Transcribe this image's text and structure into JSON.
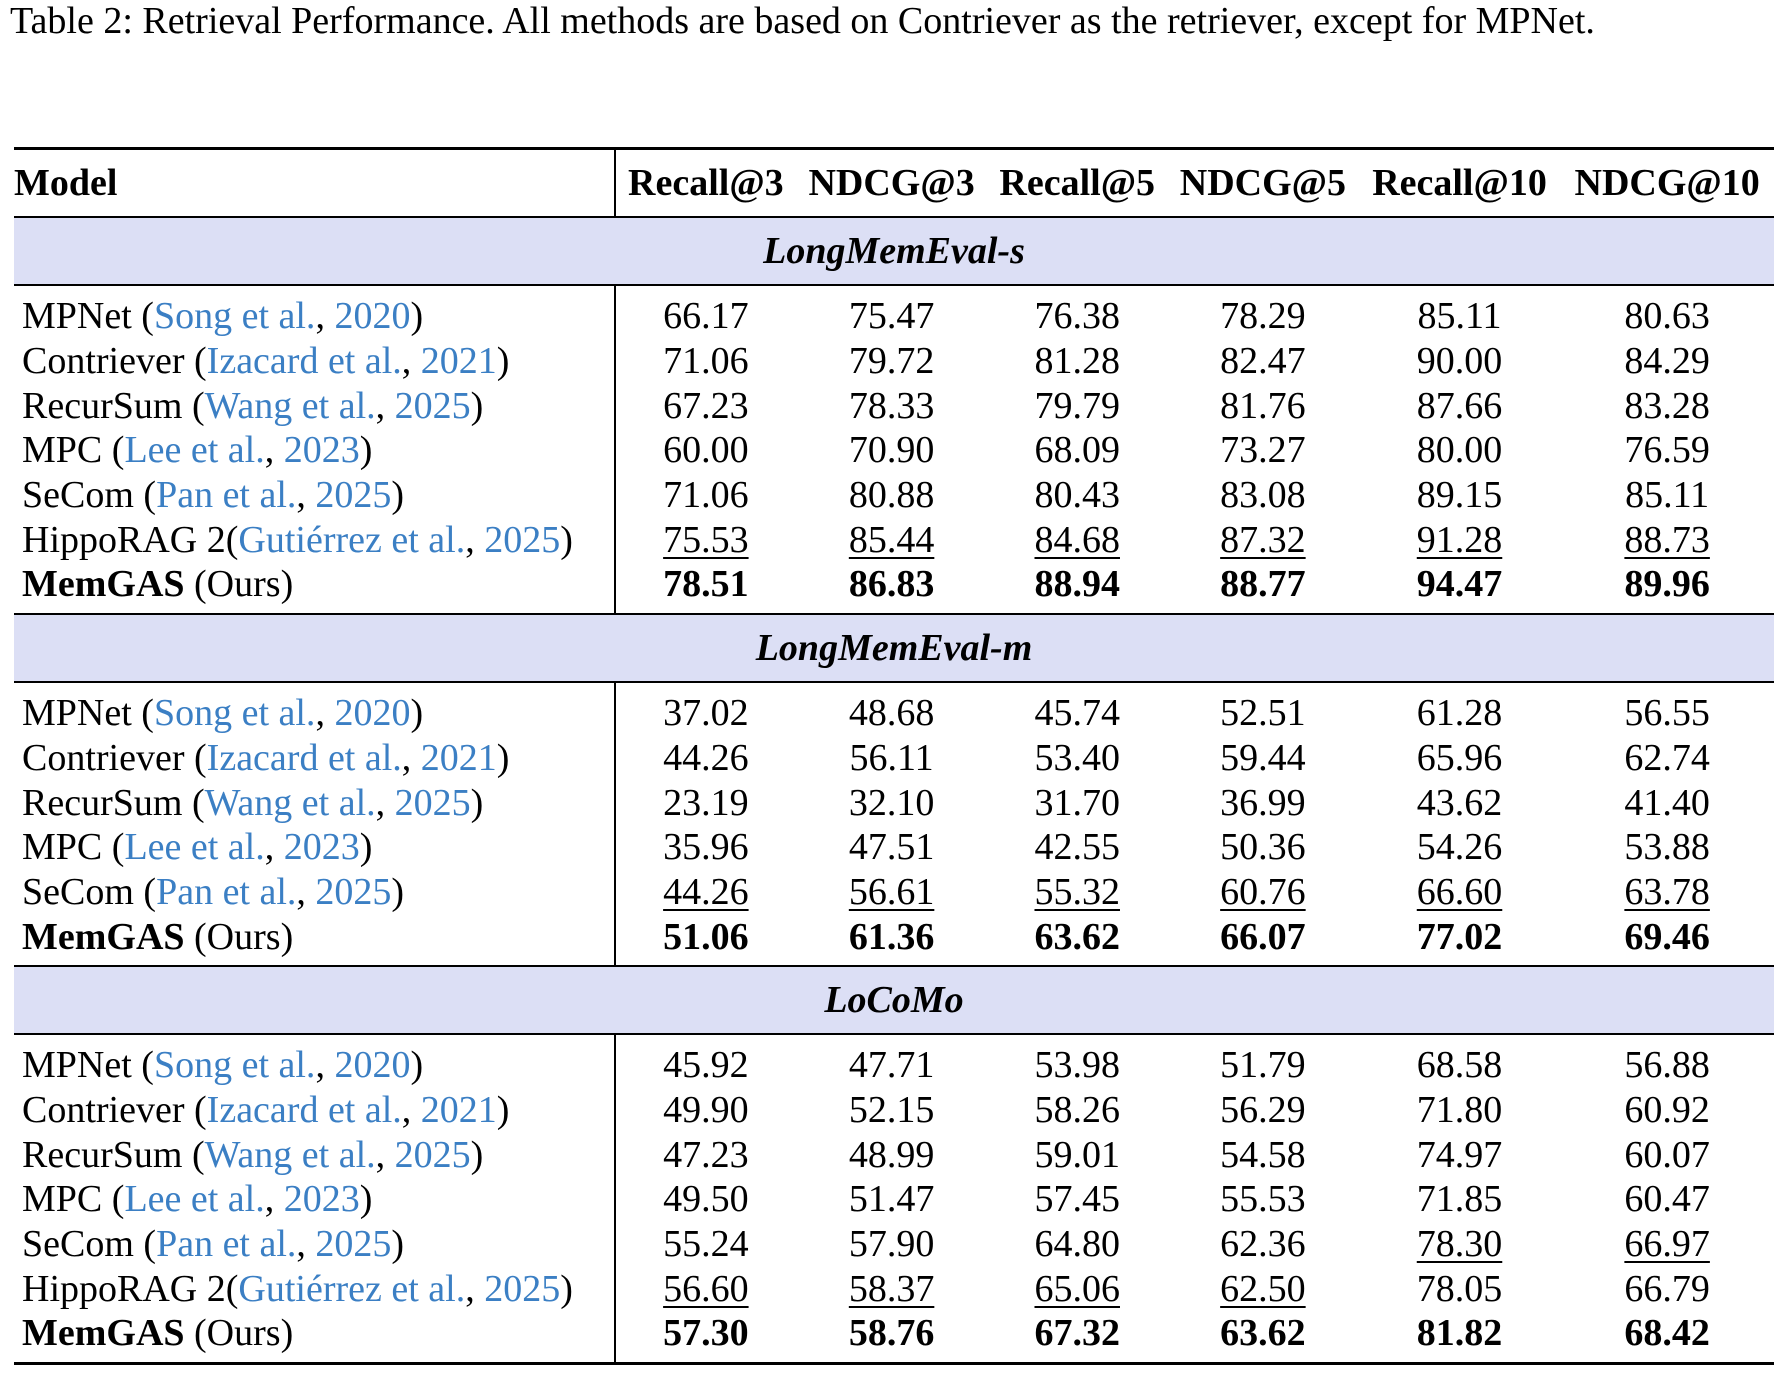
{
  "caption": "Table 2: Retrieval Performance. All methods are based on Contriever as the retriever, except for MPNet.",
  "columns": [
    "Model",
    "Recall@3",
    "NDCG@3",
    "Recall@5",
    "NDCG@5",
    "Recall@10",
    "NDCG@10"
  ],
  "sections": [
    {
      "title": "LongMemEval-s",
      "rows": [
        {
          "name": "MPNet",
          "cite_pre": " (",
          "cite_text": "Song et al.",
          "cite_sep": ", ",
          "cite_year": "2020",
          "cite_post": ")",
          "values": [
            "66.17",
            "75.47",
            "76.38",
            "78.29",
            "85.11",
            "80.63"
          ],
          "style": [
            "",
            "",
            "",
            "",
            "",
            ""
          ]
        },
        {
          "name": "Contriever",
          "cite_pre": " (",
          "cite_text": "Izacard et al.",
          "cite_sep": ", ",
          "cite_year": "2021",
          "cite_post": ")",
          "values": [
            "71.06",
            "79.72",
            "81.28",
            "82.47",
            "90.00",
            "84.29"
          ],
          "style": [
            "",
            "",
            "",
            "",
            "",
            ""
          ]
        },
        {
          "name": "RecurSum",
          "cite_pre": " (",
          "cite_text": "Wang et al.",
          "cite_sep": ", ",
          "cite_year": "2025",
          "cite_post": ")",
          "values": [
            "67.23",
            "78.33",
            "79.79",
            "81.76",
            "87.66",
            "83.28"
          ],
          "style": [
            "",
            "",
            "",
            "",
            "",
            ""
          ]
        },
        {
          "name": "MPC",
          "cite_pre": " (",
          "cite_text": "Lee et al.",
          "cite_sep": ", ",
          "cite_year": "2023",
          "cite_post": ")",
          "values": [
            "60.00",
            "70.90",
            "68.09",
            "73.27",
            "80.00",
            "76.59"
          ],
          "style": [
            "",
            "",
            "",
            "",
            "",
            ""
          ]
        },
        {
          "name": "SeCom",
          "cite_pre": " (",
          "cite_text": "Pan et al.",
          "cite_sep": ", ",
          "cite_year": "2025",
          "cite_post": ")",
          "values": [
            "71.06",
            "80.88",
            "80.43",
            "83.08",
            "89.15",
            "85.11"
          ],
          "style": [
            "",
            "",
            "",
            "",
            "",
            ""
          ]
        },
        {
          "name": "HippoRAG 2",
          "cite_pre": "(",
          "cite_text": "Gutiérrez et al.",
          "cite_sep": ", ",
          "cite_year": "2025",
          "cite_post": ")",
          "values": [
            "75.53",
            "85.44",
            "84.68",
            "87.32",
            "91.28",
            "88.73"
          ],
          "style": [
            "ul",
            "ul",
            "ul",
            "ul",
            "ul",
            "ul"
          ]
        },
        {
          "name": "MemGAS",
          "bold_name": true,
          "suffix": " (Ours)",
          "values": [
            "78.51",
            "86.83",
            "88.94",
            "88.77",
            "94.47",
            "89.96"
          ],
          "style": [
            "bold",
            "bold",
            "bold",
            "bold",
            "bold",
            "bold"
          ]
        }
      ]
    },
    {
      "title": "LongMemEval-m",
      "rows": [
        {
          "name": "MPNet",
          "cite_pre": " (",
          "cite_text": "Song et al.",
          "cite_sep": ", ",
          "cite_year": "2020",
          "cite_post": ")",
          "values": [
            "37.02",
            "48.68",
            "45.74",
            "52.51",
            "61.28",
            "56.55"
          ],
          "style": [
            "",
            "",
            "",
            "",
            "",
            ""
          ]
        },
        {
          "name": "Contriever",
          "cite_pre": " (",
          "cite_text": "Izacard et al.",
          "cite_sep": ", ",
          "cite_year": "2021",
          "cite_post": ")",
          "values": [
            "44.26",
            "56.11",
            "53.40",
            "59.44",
            "65.96",
            "62.74"
          ],
          "style": [
            "",
            "",
            "",
            "",
            "",
            ""
          ]
        },
        {
          "name": "RecurSum",
          "cite_pre": " (",
          "cite_text": "Wang et al.",
          "cite_sep": ", ",
          "cite_year": "2025",
          "cite_post": ")",
          "values": [
            "23.19",
            "32.10",
            "31.70",
            "36.99",
            "43.62",
            "41.40"
          ],
          "style": [
            "",
            "",
            "",
            "",
            "",
            ""
          ]
        },
        {
          "name": "MPC",
          "cite_pre": " (",
          "cite_text": "Lee et al.",
          "cite_sep": ", ",
          "cite_year": "2023",
          "cite_post": ")",
          "values": [
            "35.96",
            "47.51",
            "42.55",
            "50.36",
            "54.26",
            "53.88"
          ],
          "style": [
            "",
            "",
            "",
            "",
            "",
            ""
          ]
        },
        {
          "name": "SeCom",
          "cite_pre": " (",
          "cite_text": "Pan et al.",
          "cite_sep": ", ",
          "cite_year": "2025",
          "cite_post": ")",
          "values": [
            "44.26",
            "56.61",
            "55.32",
            "60.76",
            "66.60",
            "63.78"
          ],
          "style": [
            "ul",
            "ul",
            "ul",
            "ul",
            "ul",
            "ul"
          ]
        },
        {
          "name": "MemGAS",
          "bold_name": true,
          "suffix": " (Ours)",
          "values": [
            "51.06",
            "61.36",
            "63.62",
            "66.07",
            "77.02",
            "69.46"
          ],
          "style": [
            "bold",
            "bold",
            "bold",
            "bold",
            "bold",
            "bold"
          ]
        }
      ]
    },
    {
      "title": "LoCoMo",
      "rows": [
        {
          "name": "MPNet",
          "cite_pre": " (",
          "cite_text": "Song et al.",
          "cite_sep": ", ",
          "cite_year": "2020",
          "cite_post": ")",
          "values": [
            "45.92",
            "47.71",
            "53.98",
            "51.79",
            "68.58",
            "56.88"
          ],
          "style": [
            "",
            "",
            "",
            "",
            "",
            ""
          ]
        },
        {
          "name": "Contriever",
          "cite_pre": " (",
          "cite_text": "Izacard et al.",
          "cite_sep": ", ",
          "cite_year": "2021",
          "cite_post": ")",
          "values": [
            "49.90",
            "52.15",
            "58.26",
            "56.29",
            "71.80",
            "60.92"
          ],
          "style": [
            "",
            "",
            "",
            "",
            "",
            ""
          ]
        },
        {
          "name": "RecurSum",
          "cite_pre": " (",
          "cite_text": "Wang et al.",
          "cite_sep": ", ",
          "cite_year": "2025",
          "cite_post": ")",
          "values": [
            "47.23",
            "48.99",
            "59.01",
            "54.58",
            "74.97",
            "60.07"
          ],
          "style": [
            "",
            "",
            "",
            "",
            "",
            ""
          ]
        },
        {
          "name": "MPC",
          "cite_pre": " (",
          "cite_text": "Lee et al.",
          "cite_sep": ", ",
          "cite_year": "2023",
          "cite_post": ")",
          "values": [
            "49.50",
            "51.47",
            "57.45",
            "55.53",
            "71.85",
            "60.47"
          ],
          "style": [
            "",
            "",
            "",
            "",
            "",
            ""
          ]
        },
        {
          "name": "SeCom",
          "cite_pre": " (",
          "cite_text": "Pan et al.",
          "cite_sep": ", ",
          "cite_year": "2025",
          "cite_post": ")",
          "values": [
            "55.24",
            "57.90",
            "64.80",
            "62.36",
            "78.30",
            "66.97"
          ],
          "style": [
            "",
            "",
            "",
            "",
            "ul",
            "ul"
          ]
        },
        {
          "name": "HippoRAG 2",
          "cite_pre": "(",
          "cite_text": "Gutiérrez et al.",
          "cite_sep": ", ",
          "cite_year": "2025",
          "cite_post": ")",
          "values": [
            "56.60",
            "58.37",
            "65.06",
            "62.50",
            "78.05",
            "66.79"
          ],
          "style": [
            "ul",
            "ul",
            "ul",
            "ul",
            "",
            ""
          ]
        },
        {
          "name": "MemGAS",
          "bold_name": true,
          "suffix": " (Ours)",
          "values": [
            "57.30",
            "58.76",
            "67.32",
            "63.62",
            "81.82",
            "68.42"
          ],
          "style": [
            "bold",
            "bold",
            "bold",
            "bold",
            "bold",
            "bold"
          ]
        }
      ]
    }
  ]
}
